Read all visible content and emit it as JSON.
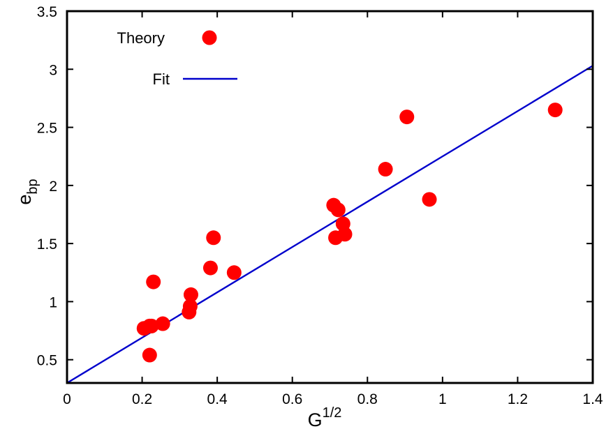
{
  "chart_data": {
    "type": "scatter",
    "xlabel": {
      "base": "G",
      "sup": "1/2"
    },
    "ylabel": {
      "base": "e",
      "sub": "bp"
    },
    "xlim": [
      0,
      1.4
    ],
    "ylim": [
      0.3,
      3.5
    ],
    "x_ticks": [
      0,
      0.2,
      0.4,
      0.6,
      0.8,
      1,
      1.2,
      1.4
    ],
    "x_tick_labels": [
      "0",
      "0.2",
      "0.4",
      "0.6",
      "0.8",
      "1",
      "1.2",
      "1.4"
    ],
    "y_ticks": [
      0.5,
      1,
      1.5,
      2,
      2.5,
      3,
      3.5
    ],
    "y_tick_labels": [
      "0.5",
      "1",
      "1.5",
      "2",
      "2.5",
      "3",
      "3.5"
    ],
    "grid": false,
    "legend_position": "top-left",
    "series": [
      {
        "name": "Theory",
        "kind": "scatter",
        "color": "#ff0000",
        "points": [
          [
            0.205,
            0.77
          ],
          [
            0.22,
            0.79
          ],
          [
            0.225,
            0.79
          ],
          [
            0.22,
            0.54
          ],
          [
            0.23,
            1.17
          ],
          [
            0.255,
            0.81
          ],
          [
            0.325,
            0.91
          ],
          [
            0.328,
            0.96
          ],
          [
            0.33,
            1.06
          ],
          [
            0.382,
            1.29
          ],
          [
            0.39,
            1.55
          ],
          [
            0.445,
            1.25
          ],
          [
            0.71,
            1.83
          ],
          [
            0.715,
            1.55
          ],
          [
            0.722,
            1.79
          ],
          [
            0.735,
            1.67
          ],
          [
            0.74,
            1.58
          ],
          [
            0.848,
            2.14
          ],
          [
            0.905,
            2.59
          ],
          [
            0.965,
            1.88
          ],
          [
            1.3,
            2.65
          ]
        ]
      },
      {
        "name": "Fit",
        "kind": "line",
        "color": "#0000cc",
        "line": {
          "intercept": 0.3,
          "slope": 1.95
        }
      }
    ]
  }
}
